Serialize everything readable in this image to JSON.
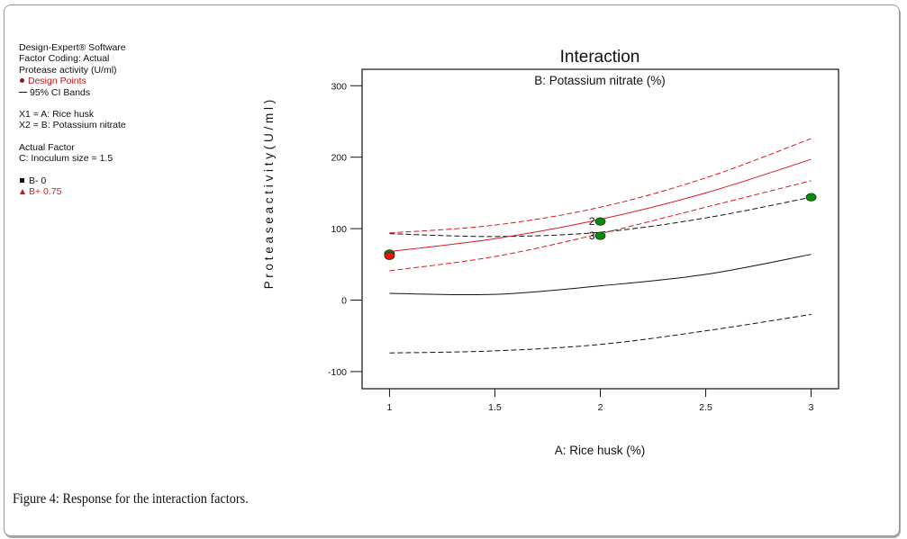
{
  "legend": {
    "software": "Design-Expert® Software",
    "coding": "Factor Coding: Actual",
    "response": "Protease activity (U/ml)",
    "design_points": "Design Points",
    "ci_bands": "95% CI Bands",
    "x1": "X1 = A: Rice husk",
    "x2": "X2 = B: Potassium nitrate",
    "actual_factor_title": "Actual Factor",
    "actual_factor": "C: Inoculum size = 1.5",
    "series_low": "B- 0",
    "series_high": "B+ 0.75"
  },
  "caption": {
    "label": "Figure 4:",
    "text": "Response for the interaction factors."
  },
  "chart_data": {
    "type": "line",
    "title": "Interaction",
    "subtitle": "B: Potassium nitrate (%)",
    "xlabel": "A: Rice husk (%)",
    "ylabel": "Protease activity (U/ml)",
    "ylabel_display": "P r o t e a s e   a c t i v i t y   ( U / m l )",
    "xlim": [
      0.87,
      3.13
    ],
    "ylim": [
      -124,
      323
    ],
    "xticks": [
      1,
      1.5,
      2,
      2.5,
      3
    ],
    "xtick_labels": [
      "1",
      "1.5",
      "2",
      "2.5",
      "3"
    ],
    "yticks": [
      -100,
      0,
      100,
      200,
      300
    ],
    "ytick_labels": [
      "-100",
      "0",
      "100",
      "200",
      "300"
    ],
    "grid": false,
    "x": [
      1,
      1.5,
      2,
      2.5,
      3
    ],
    "series": [
      {
        "name": "B- 0",
        "color": "#111111",
        "style": "solid",
        "values": [
          9.5,
          8,
          20,
          36,
          64
        ]
      },
      {
        "name": "B- 0 lower 95% CI",
        "color": "#111111",
        "style": "dashed",
        "values": [
          -74,
          -71,
          -62,
          -43,
          -20
        ]
      },
      {
        "name": "B- 0 upper 95% CI",
        "color": "#111111",
        "style": "dashed",
        "values": [
          93,
          89,
          95,
          115,
          144
        ]
      },
      {
        "name": "B+ 0.75",
        "color": "#e0161b",
        "style": "solid",
        "values": [
          68,
          86,
          113,
          150,
          197
        ]
      },
      {
        "name": "B+ 0.75 lower 95% CI",
        "color": "#e0161b",
        "style": "dashed",
        "values": [
          41,
          61,
          93,
          130,
          167
        ]
      },
      {
        "name": "B+ 0.75 upper 95% CI",
        "color": "#e0161b",
        "style": "dashed",
        "values": [
          94,
          105,
          130,
          171,
          226
        ]
      }
    ],
    "points": [
      {
        "x": 1,
        "y": 65,
        "color": "#0b8a0b",
        "label": ""
      },
      {
        "x": 1,
        "y": 62,
        "color": "#ee1111",
        "label": ""
      },
      {
        "x": 2,
        "y": 110,
        "color": "#0b8a0b",
        "label": "2"
      },
      {
        "x": 2,
        "y": 90,
        "color": "#0b8a0b",
        "label": "3"
      },
      {
        "x": 3,
        "y": 144,
        "color": "#0b8a0b",
        "label": ""
      }
    ]
  }
}
